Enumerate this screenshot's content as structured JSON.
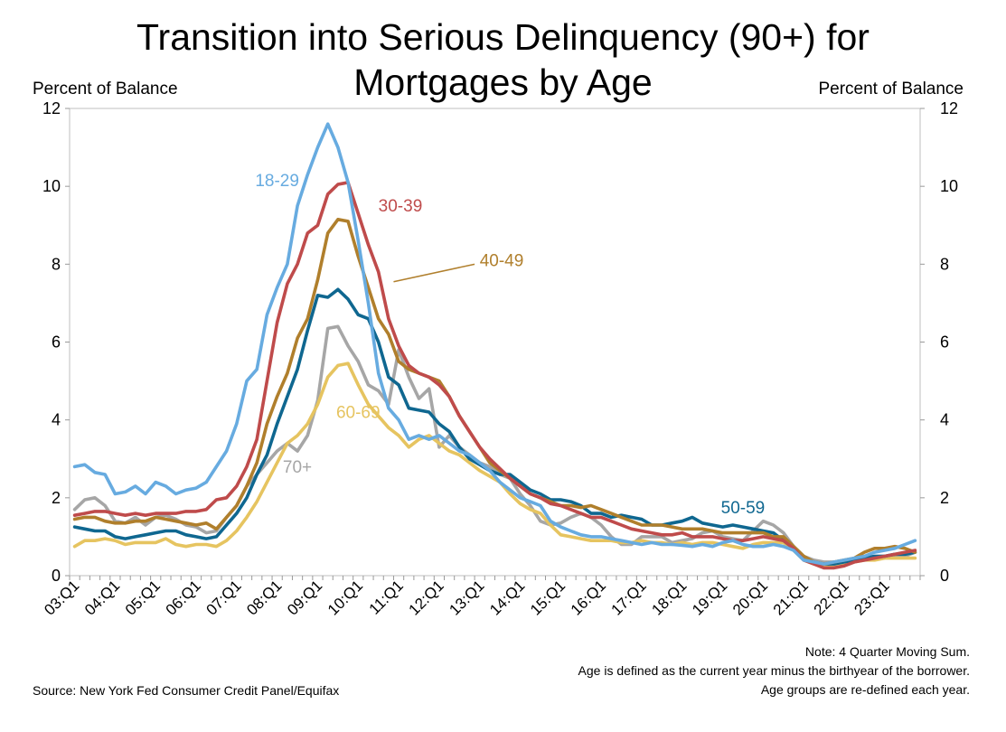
{
  "chart_data": {
    "type": "line",
    "title_lines": [
      "Transition into Serious Delinquency (90+) for",
      "Mortgages by Age"
    ],
    "ylabel_left": "Percent of Balance",
    "ylabel_right": "Percent of Balance",
    "ylim": [
      0,
      12
    ],
    "yticks": [
      "0",
      "2",
      "4",
      "6",
      "8",
      "10",
      "12"
    ],
    "xtick_labels": [
      "03:Q1",
      "04:Q1",
      "05:Q1",
      "06:Q1",
      "07:Q1",
      "08:Q1",
      "09:Q1",
      "10:Q1",
      "11:Q1",
      "12:Q1",
      "13:Q1",
      "14:Q1",
      "15:Q1",
      "16:Q1",
      "17:Q1",
      "18:Q1",
      "19:Q1",
      "20:Q1",
      "21:Q1",
      "22:Q1",
      "23:Q1"
    ],
    "x_start": "2003Q1",
    "n_quarters": 84,
    "series": [
      {
        "name": "18-29",
        "color": "#67ABE0",
        "label": "18-29",
        "values": [
          2.8,
          2.85,
          2.65,
          2.6,
          2.1,
          2.15,
          2.3,
          2.1,
          2.4,
          2.3,
          2.1,
          2.2,
          2.25,
          2.4,
          2.8,
          3.2,
          3.9,
          5.0,
          5.3,
          6.7,
          7.4,
          8.0,
          9.5,
          10.3,
          11.0,
          11.6,
          11.0,
          10.1,
          8.6,
          7.0,
          5.2,
          4.3,
          4.0,
          3.5,
          3.6,
          3.5,
          3.6,
          3.4,
          3.2,
          3.1,
          2.9,
          2.7,
          2.4,
          2.2,
          2.0,
          1.9,
          1.8,
          1.4,
          1.25,
          1.15,
          1.05,
          1.0,
          1.0,
          0.95,
          0.9,
          0.85,
          0.8,
          0.85,
          0.8,
          0.8,
          0.78,
          0.75,
          0.8,
          0.75,
          0.85,
          0.9,
          0.8,
          0.75,
          0.75,
          0.8,
          0.75,
          0.65,
          0.4,
          0.35,
          0.3,
          0.35,
          0.4,
          0.45,
          0.5,
          0.6,
          0.65,
          0.7,
          0.8,
          0.9
        ]
      },
      {
        "name": "30-39",
        "color": "#BF4B4B",
        "label": "30-39",
        "values": [
          1.55,
          1.6,
          1.65,
          1.65,
          1.6,
          1.55,
          1.6,
          1.55,
          1.6,
          1.6,
          1.6,
          1.65,
          1.65,
          1.7,
          1.95,
          2.0,
          2.3,
          2.8,
          3.5,
          5.0,
          6.5,
          7.5,
          8.0,
          8.8,
          9.0,
          9.8,
          10.05,
          10.1,
          9.3,
          8.5,
          7.8,
          6.6,
          5.9,
          5.4,
          5.2,
          5.1,
          4.9,
          4.6,
          4.1,
          3.7,
          3.3,
          3.0,
          2.75,
          2.5,
          2.3,
          2.1,
          2.0,
          1.85,
          1.8,
          1.7,
          1.6,
          1.5,
          1.5,
          1.4,
          1.3,
          1.2,
          1.15,
          1.1,
          1.05,
          1.05,
          1.1,
          1.0,
          1.0,
          1.0,
          0.95,
          0.9,
          0.9,
          0.95,
          1.0,
          0.95,
          0.9,
          0.7,
          0.4,
          0.3,
          0.2,
          0.2,
          0.25,
          0.35,
          0.4,
          0.45,
          0.5,
          0.55,
          0.6,
          0.65
        ]
      },
      {
        "name": "40-49",
        "color": "#B07F2C",
        "label": "40-49",
        "values": [
          1.45,
          1.5,
          1.5,
          1.4,
          1.35,
          1.35,
          1.4,
          1.4,
          1.5,
          1.45,
          1.4,
          1.35,
          1.3,
          1.35,
          1.2,
          1.5,
          1.8,
          2.3,
          2.9,
          3.9,
          4.6,
          5.2,
          6.1,
          6.6,
          7.6,
          8.8,
          9.15,
          9.1,
          8.2,
          7.4,
          6.6,
          6.2,
          5.5,
          5.3,
          5.2,
          5.1,
          5.0,
          4.6,
          4.1,
          3.7,
          3.3,
          2.9,
          2.7,
          2.5,
          2.3,
          2.1,
          2.0,
          1.9,
          1.8,
          1.8,
          1.75,
          1.8,
          1.7,
          1.6,
          1.5,
          1.4,
          1.3,
          1.3,
          1.3,
          1.25,
          1.2,
          1.2,
          1.2,
          1.15,
          1.1,
          1.1,
          1.1,
          1.1,
          1.1,
          1.0,
          1.0,
          0.75,
          0.5,
          0.35,
          0.3,
          0.35,
          0.4,
          0.45,
          0.6,
          0.7,
          0.7,
          0.75,
          0.7,
          0.6
        ]
      },
      {
        "name": "50-59",
        "color": "#0F6790",
        "label": "50-59",
        "values": [
          1.25,
          1.2,
          1.15,
          1.15,
          1.0,
          0.95,
          1.0,
          1.05,
          1.1,
          1.15,
          1.15,
          1.05,
          1.0,
          0.95,
          1.0,
          1.3,
          1.6,
          2.0,
          2.6,
          3.1,
          3.9,
          4.6,
          5.3,
          6.3,
          7.2,
          7.15,
          7.35,
          7.1,
          6.7,
          6.6,
          6.0,
          5.1,
          4.9,
          4.3,
          4.25,
          4.2,
          3.9,
          3.7,
          3.3,
          3.0,
          2.85,
          2.7,
          2.6,
          2.6,
          2.4,
          2.2,
          2.1,
          1.95,
          1.95,
          1.9,
          1.8,
          1.6,
          1.6,
          1.5,
          1.55,
          1.5,
          1.45,
          1.3,
          1.3,
          1.35,
          1.4,
          1.5,
          1.35,
          1.3,
          1.25,
          1.3,
          1.25,
          1.2,
          1.15,
          1.1,
          0.9,
          0.7,
          0.45,
          0.35,
          0.3,
          0.3,
          0.35,
          0.4,
          0.45,
          0.5,
          0.5,
          0.55,
          0.55,
          0.6
        ]
      },
      {
        "name": "60-69",
        "color": "#E6C460",
        "label": "60-69",
        "values": [
          0.75,
          0.9,
          0.9,
          0.95,
          0.9,
          0.8,
          0.85,
          0.85,
          0.85,
          0.95,
          0.8,
          0.75,
          0.8,
          0.8,
          0.75,
          0.9,
          1.15,
          1.5,
          1.9,
          2.4,
          2.9,
          3.4,
          3.6,
          3.9,
          4.4,
          5.1,
          5.4,
          5.45,
          4.9,
          4.4,
          4.1,
          3.8,
          3.6,
          3.3,
          3.5,
          3.6,
          3.4,
          3.2,
          3.1,
          2.9,
          2.7,
          2.55,
          2.4,
          2.1,
          1.85,
          1.7,
          1.6,
          1.3,
          1.05,
          1.0,
          0.95,
          0.9,
          0.9,
          0.9,
          0.85,
          0.85,
          0.9,
          0.85,
          0.85,
          0.8,
          0.85,
          0.8,
          0.85,
          0.85,
          0.8,
          0.75,
          0.7,
          0.8,
          0.85,
          0.85,
          0.85,
          0.65,
          0.4,
          0.3,
          0.25,
          0.25,
          0.3,
          0.35,
          0.4,
          0.4,
          0.45,
          0.45,
          0.45,
          0.45
        ]
      },
      {
        "name": "70+",
        "color": "#A6A6A6",
        "label": "70+",
        "values": [
          1.7,
          1.95,
          2.0,
          1.8,
          1.4,
          1.35,
          1.5,
          1.3,
          1.5,
          1.55,
          1.45,
          1.3,
          1.25,
          1.1,
          1.15,
          1.5,
          1.8,
          2.3,
          2.6,
          2.9,
          3.2,
          3.4,
          3.2,
          3.6,
          4.5,
          6.35,
          6.4,
          5.9,
          5.5,
          4.9,
          4.75,
          4.4,
          5.8,
          5.1,
          4.55,
          4.8,
          3.3,
          3.6,
          3.3,
          3.1,
          2.9,
          2.8,
          2.6,
          2.5,
          2.1,
          1.8,
          1.4,
          1.3,
          1.35,
          1.5,
          1.6,
          1.5,
          1.3,
          1.0,
          0.8,
          0.8,
          1.0,
          1.0,
          1.0,
          0.85,
          0.9,
          0.95,
          1.1,
          1.15,
          1.0,
          0.95,
          0.9,
          1.15,
          1.4,
          1.3,
          1.1,
          0.75,
          0.5,
          0.4,
          0.35,
          0.35,
          0.35,
          0.4,
          0.45,
          0.5,
          0.5,
          0.5,
          0.5,
          0.6
        ]
      }
    ],
    "annotations": [
      {
        "text": "18-29",
        "series": "18-29"
      },
      {
        "text": "30-39",
        "series": "30-39"
      },
      {
        "text": "40-49",
        "series": "40-49"
      },
      {
        "text": "50-59",
        "series": "50-59"
      },
      {
        "text": "60-69",
        "series": "60-69"
      },
      {
        "text": "70+",
        "series": "70+"
      }
    ],
    "notes": [
      "Note: 4 Quarter Moving Sum.",
      "Age is defined as the current year minus the birthyear of the borrower.",
      "Age groups are re-defined each year."
    ],
    "source": "Source: New York Fed Consumer Credit Panel/Equifax"
  }
}
